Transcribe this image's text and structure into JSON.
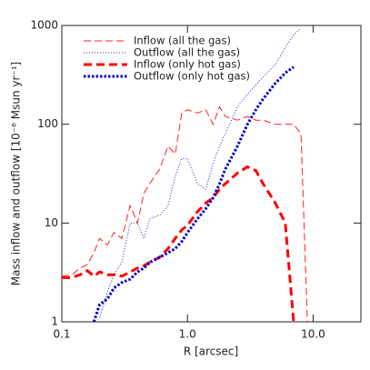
{
  "chart_data": {
    "type": "line",
    "x_label": "R [arcsec]",
    "y_label": "Mass inflow and outflow [10⁻⁶ Msun yr⁻¹]",
    "x_log": true,
    "y_log": true,
    "xlim": [
      0.1,
      24
    ],
    "ylim": [
      1,
      1000
    ],
    "xticks": [
      0.1,
      {
        "value": 1,
        "label": "1.0"
      },
      {
        "value": 10,
        "label": "10.0"
      }
    ],
    "yticks": [
      1,
      10,
      100,
      1000
    ],
    "legend": "upper left",
    "x": [
      0.1,
      0.12,
      0.14,
      0.16,
      0.18,
      0.2,
      0.23,
      0.26,
      0.3,
      0.35,
      0.4,
      0.45,
      0.5,
      0.6,
      0.7,
      0.8,
      0.9,
      1.0,
      1.2,
      1.4,
      1.6,
      1.8,
      2.0,
      2.5,
      3.0,
      3.5,
      4.0,
      5.0,
      6.0,
      7.0,
      8.0,
      9.0
    ],
    "series": [
      {
        "name": "Inflow (all the gas)",
        "color": "#ff2020",
        "dash": "dashed",
        "width": 1,
        "values": [
          2.9,
          3.0,
          3.5,
          3.8,
          5,
          7,
          6,
          8,
          7,
          15,
          10,
          20,
          25,
          35,
          60,
          50,
          130,
          140,
          130,
          140,
          100,
          150,
          120,
          110,
          120,
          110,
          110,
          100,
          100,
          100,
          80,
          1
        ]
      },
      {
        "name": "Outflow (all the gas)",
        "color": "#2020d0",
        "dash": "dotted",
        "width": 1,
        "values": [
          null,
          null,
          null,
          null,
          null,
          1.1,
          2,
          3,
          4,
          10,
          10,
          7,
          11,
          12,
          15,
          30,
          45,
          45,
          25,
          22,
          40,
          60,
          80,
          150,
          200,
          250,
          300,
          400,
          600,
          800,
          950,
          null
        ]
      },
      {
        "name": "Inflow (only hot gas)",
        "color": "#ff0000",
        "dash": "dashed",
        "width": 3,
        "values": [
          2.8,
          2.8,
          3.0,
          3.3,
          2.9,
          3.2,
          3.0,
          3.0,
          2.9,
          3.2,
          3.5,
          3.7,
          4.0,
          4.5,
          5.5,
          7,
          8.5,
          9.5,
          13,
          16,
          18,
          22,
          25,
          32,
          37,
          34,
          25,
          16,
          10,
          1,
          null,
          null
        ]
      },
      {
        "name": "Outflow (only hot gas)",
        "color": "#0000cc",
        "dash": "dotted",
        "width": 3,
        "values": [
          null,
          null,
          null,
          null,
          1,
          1.5,
          1.7,
          2.2,
          2.5,
          2.7,
          3.2,
          3.5,
          4,
          4.5,
          5,
          5.5,
          6.5,
          8,
          11,
          14,
          18,
          25,
          35,
          60,
          100,
          140,
          180,
          260,
          330,
          380,
          null,
          null
        ]
      }
    ]
  }
}
